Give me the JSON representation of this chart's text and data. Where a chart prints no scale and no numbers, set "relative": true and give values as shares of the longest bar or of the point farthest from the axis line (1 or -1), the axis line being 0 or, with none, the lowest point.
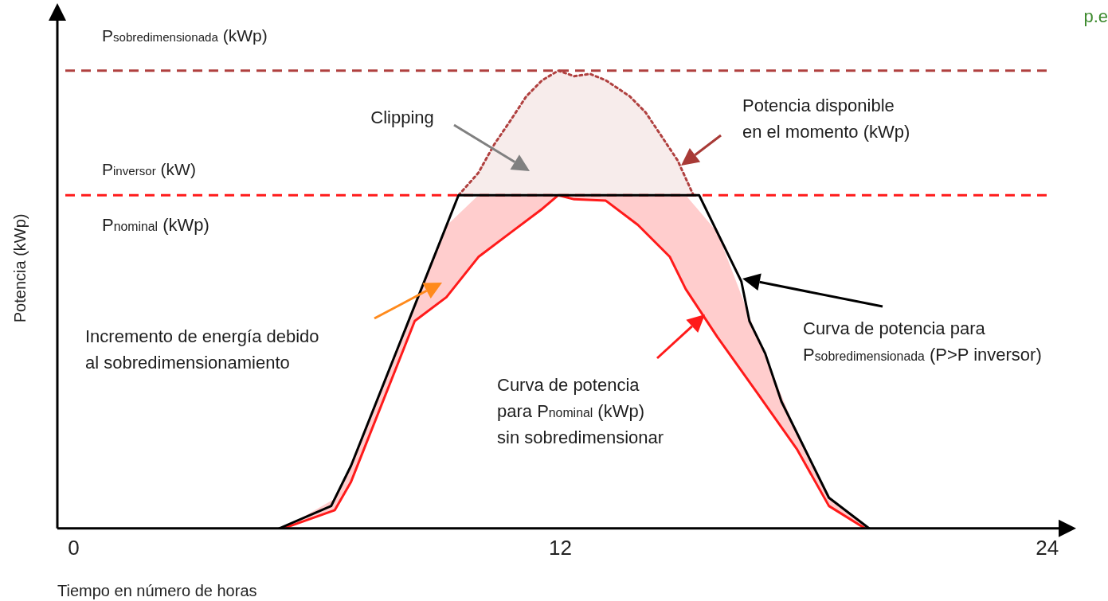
{
  "chart_data": {
    "type": "line",
    "relative": true,
    "xlabel": "Tiempo en número de horas",
    "ylabel": "Potencia (kWp)",
    "xlim": [
      -0.4,
      24.4
    ],
    "xticks": [
      0,
      12,
      24
    ],
    "grid": false,
    "legend": false,
    "marker": "none",
    "series": [
      {
        "color": "#000000",
        "line_style": "solid",
        "x": [
          5.07,
          6.35,
          6.84,
          9.49,
          15.42,
          16.46,
          16.66,
          17.05,
          17.45,
          17.84,
          18.62,
          19.61
        ],
        "values": [
          0,
          0.049,
          0.137,
          0.728,
          0.728,
          0.54,
          0.453,
          0.382,
          0.277,
          0.207,
          0.067,
          0
        ]
      },
      {
        "color": "#ff1a1a",
        "line_style": "solid",
        "x": [
          5.17,
          6.44,
          6.84,
          8.41,
          9.19,
          9.98,
          10.77,
          11.55,
          11.95,
          12.34,
          13.12,
          13.91,
          14.7,
          15.09,
          15.87,
          16.86,
          17.84,
          18.62,
          19.51
        ],
        "values": [
          0,
          0.04,
          0.102,
          0.453,
          0.505,
          0.593,
          0.646,
          0.698,
          0.728,
          0.719,
          0.716,
          0.663,
          0.593,
          0.523,
          0.418,
          0.295,
          0.172,
          0.049,
          0
        ],
        "lower": [
          0,
          0.04,
          0.102,
          0.453,
          0.505,
          0.593,
          0.646,
          0.698,
          0.728,
          0.719,
          0.716,
          0.663,
          0.593,
          0.523,
          0.418,
          0.295,
          0.172,
          0.049,
          0
        ],
        "upper": [
          0,
          0.065,
          0.137,
          0.487,
          0.661,
          0.728,
          0.728,
          0.728,
          0.728,
          0.728,
          0.728,
          0.728,
          0.728,
          0.728,
          0.647,
          0.417,
          0.207,
          0.067,
          0.007
        ]
      },
      {
        "color": "#b0403f",
        "line_style": "dotted",
        "x": [
          9.49,
          9.98,
          10.37,
          10.77,
          11.16,
          11.55,
          11.95,
          12.34,
          12.73,
          13.12,
          13.71,
          14.1,
          14.5,
          14.89,
          15.28
        ],
        "values": [
          0.728,
          0.777,
          0.839,
          0.891,
          0.944,
          0.979,
          1,
          0.988,
          0.993,
          0.979,
          0.944,
          0.909,
          0.856,
          0.804,
          0.728
        ],
        "lower": [
          0.728,
          0.728,
          0.728,
          0.728,
          0.728,
          0.728,
          0.728,
          0.728,
          0.728,
          0.728,
          0.728,
          0.728,
          0.728,
          0.728,
          0.728
        ],
        "upper": [
          0.728,
          0.777,
          0.839,
          0.891,
          0.944,
          0.979,
          1,
          0.988,
          0.993,
          0.979,
          0.944,
          0.909,
          0.856,
          0.804,
          0.728
        ]
      }
    ],
    "ref_lines": [
      {
        "axis": "y",
        "value": 1,
        "label": "P$_{sobredimensionada}$ (kWp)",
        "color": "#b0403f",
        "line_style": "dashed"
      },
      {
        "axis": "y",
        "value": 0.728,
        "label": "P$_{inversor}$ (kW)",
        "color": "#ff1a1a",
        "line_style": "dashed"
      }
    ],
    "annotations": [
      "Clipping",
      "Potencia disponible\nen el momento (kWp)",
      "Incremento de energía debido\nal sobredimensionamiento",
      "Curva de potencia\npara P$_{nominal}$ (kWp)\nsin sobredimensionar",
      "Curva de potencia para\nP$_{sobredimensionada}$ (P>P inversor)",
      "P$_{nominal}$ (kWp)",
      "p.e"
    ]
  }
}
